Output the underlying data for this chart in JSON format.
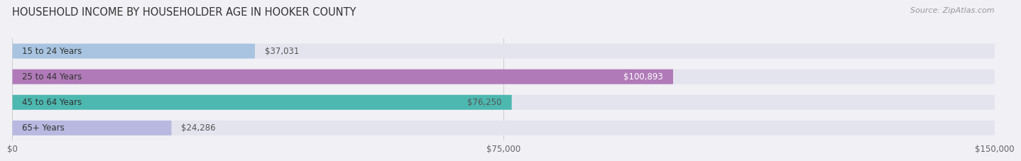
{
  "title": "HOUSEHOLD INCOME BY HOUSEHOLDER AGE IN HOOKER COUNTY",
  "source": "Source: ZipAtlas.com",
  "categories": [
    "15 to 24 Years",
    "25 to 44 Years",
    "45 to 64 Years",
    "65+ Years"
  ],
  "values": [
    37031,
    100893,
    76250,
    24286
  ],
  "bar_colors": [
    "#a8c4e0",
    "#b07ab8",
    "#4db8b0",
    "#b8b8e0"
  ],
  "bar_label_colors": [
    "#555555",
    "#ffffff",
    "#555555",
    "#555555"
  ],
  "value_labels": [
    "$37,031",
    "$100,893",
    "$76,250",
    "$24,286"
  ],
  "xlim": [
    0,
    150000
  ],
  "xticks": [
    0,
    75000,
    150000
  ],
  "xtick_labels": [
    "$0",
    "$75,000",
    "$150,000"
  ],
  "background_color": "#f0f0f5",
  "bar_bg_color": "#e4e4ef",
  "title_fontsize": 10.5,
  "source_fontsize": 8,
  "label_fontsize": 8.5,
  "value_fontsize": 8.5,
  "bar_height": 0.58,
  "label_threshold": 50000
}
